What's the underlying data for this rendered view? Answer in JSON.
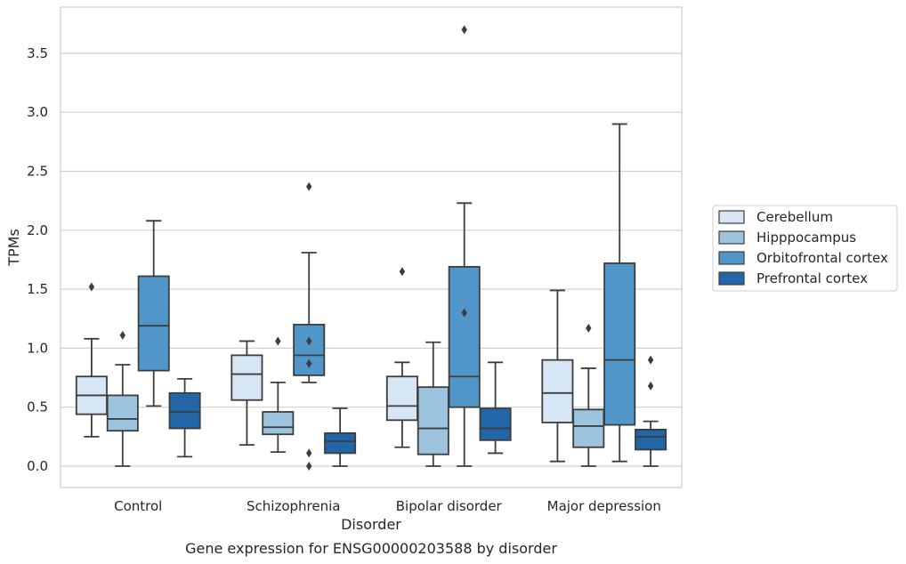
{
  "chart_data": {
    "type": "box",
    "xlabel": "Disorder",
    "ylabel": "TPMs",
    "caption": "Gene expression for ENSG00000203588 by disorder",
    "ylim": [
      -0.18,
      3.88
    ],
    "yticks": [
      "0.0",
      "0.5",
      "1.0",
      "1.5",
      "2.0",
      "2.5",
      "3.0",
      "3.5"
    ],
    "ytick_values": [
      0,
      0.5,
      1.0,
      1.5,
      2.0,
      2.5,
      3.0,
      3.5
    ],
    "grid": "horizontal",
    "legend_position": "right",
    "categories": [
      "Control",
      "Schizophrenia",
      "Bipolar disorder",
      "Major depression"
    ],
    "series": [
      {
        "name": "Cerebellum",
        "color": "#d6e6f4",
        "boxes": [
          {
            "whislo": 0.25,
            "q1": 0.44,
            "med": 0.6,
            "q3": 0.76,
            "whishi": 1.08,
            "fliers": [
              1.52
            ]
          },
          {
            "whislo": 0.18,
            "q1": 0.56,
            "med": 0.78,
            "q3": 0.94,
            "whishi": 1.06,
            "fliers": []
          },
          {
            "whislo": 0.16,
            "q1": 0.39,
            "med": 0.51,
            "q3": 0.76,
            "whishi": 0.88,
            "fliers": [
              1.65
            ]
          },
          {
            "whislo": 0.04,
            "q1": 0.37,
            "med": 0.62,
            "q3": 0.9,
            "whishi": 1.49,
            "fliers": []
          }
        ]
      },
      {
        "name": "Hipppocampus",
        "color": "#9cc4de",
        "boxes": [
          {
            "whislo": 0.0,
            "q1": 0.3,
            "med": 0.4,
            "q3": 0.6,
            "whishi": 0.86,
            "fliers": [
              1.11
            ]
          },
          {
            "whislo": 0.12,
            "q1": 0.27,
            "med": 0.33,
            "q3": 0.46,
            "whishi": 0.71,
            "fliers": [
              1.06
            ]
          },
          {
            "whislo": 0.0,
            "q1": 0.1,
            "med": 0.32,
            "q3": 0.67,
            "whishi": 1.05,
            "fliers": []
          },
          {
            "whislo": 0.0,
            "q1": 0.16,
            "med": 0.34,
            "q3": 0.48,
            "whishi": 0.83,
            "fliers": [
              1.17
            ]
          }
        ]
      },
      {
        "name": "Orbitofrontal cortex",
        "color": "#5096c8",
        "boxes": [
          {
            "whislo": 0.51,
            "q1": 0.81,
            "med": 1.19,
            "q3": 1.61,
            "whishi": 2.08,
            "fliers": []
          },
          {
            "whislo": 0.71,
            "q1": 0.77,
            "med": 0.94,
            "q3": 1.2,
            "whishi": 1.81,
            "fliers": [
              2.37,
              1.06,
              0.87,
              0.11,
              0.0
            ]
          },
          {
            "whislo": 0.0,
            "q1": 0.5,
            "med": 0.76,
            "q3": 1.69,
            "whishi": 2.23,
            "fliers": [
              3.7,
              1.3
            ]
          },
          {
            "whislo": 0.04,
            "q1": 0.35,
            "med": 0.9,
            "q3": 1.72,
            "whishi": 2.9,
            "fliers": []
          }
        ]
      },
      {
        "name": "Prefrontal cortex",
        "color": "#2266a8",
        "boxes": [
          {
            "whislo": 0.08,
            "q1": 0.32,
            "med": 0.46,
            "q3": 0.62,
            "whishi": 0.74,
            "fliers": []
          },
          {
            "whislo": 0.0,
            "q1": 0.11,
            "med": 0.21,
            "q3": 0.28,
            "whishi": 0.49,
            "fliers": []
          },
          {
            "whislo": 0.11,
            "q1": 0.22,
            "med": 0.32,
            "q3": 0.49,
            "whishi": 0.88,
            "fliers": []
          },
          {
            "whislo": 0.0,
            "q1": 0.14,
            "med": 0.25,
            "q3": 0.31,
            "whishi": 0.38,
            "fliers": [
              0.9,
              0.68
            ]
          }
        ]
      }
    ]
  }
}
